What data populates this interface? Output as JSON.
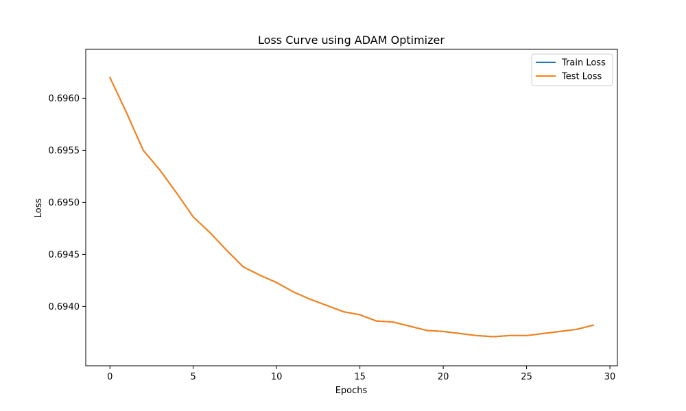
{
  "chart_data": {
    "type": "line",
    "title": "Loss Curve using ADAM Optimizer",
    "xlabel": "Epochs",
    "ylabel": "Loss",
    "xlim": [
      -1.45,
      30.45
    ],
    "ylim": [
      0.69343,
      0.69647
    ],
    "xticks": [
      0,
      5,
      10,
      15,
      20,
      25,
      30
    ],
    "xtick_labels": [
      "0",
      "5",
      "10",
      "15",
      "20",
      "25",
      "30"
    ],
    "yticks": [
      0.694,
      0.6945,
      0.695,
      0.6955,
      0.696
    ],
    "ytick_labels": [
      "0.6940",
      "0.6945",
      "0.6950",
      "0.6955",
      "0.6960"
    ],
    "grid": false,
    "legend_position": "top-right",
    "x": [
      0,
      1,
      2,
      3,
      4,
      5,
      6,
      7,
      8,
      9,
      10,
      11,
      12,
      13,
      14,
      15,
      16,
      17,
      18,
      19,
      20,
      21,
      22,
      23,
      24,
      25,
      26,
      27,
      28,
      29
    ],
    "series": [
      {
        "name": "Train Loss",
        "color": "#1f77b4",
        "values": [
          0.6962,
          0.69586,
          0.6955,
          0.69531,
          0.69509,
          0.69486,
          0.69471,
          0.69454,
          0.69438,
          0.6943,
          0.69423,
          0.69414,
          0.69407,
          0.69401,
          0.69395,
          0.69392,
          0.69386,
          0.69385,
          0.69381,
          0.69377,
          0.69376,
          0.69374,
          0.69372,
          0.69371,
          0.69372,
          0.69372,
          0.69374,
          0.69376,
          0.69378,
          0.69382
        ]
      },
      {
        "name": "Test Loss",
        "color": "#ff7f0e",
        "values": [
          0.6962,
          0.69586,
          0.6955,
          0.69531,
          0.69509,
          0.69486,
          0.69471,
          0.69454,
          0.69438,
          0.6943,
          0.69423,
          0.69414,
          0.69407,
          0.69401,
          0.69395,
          0.69392,
          0.69386,
          0.69385,
          0.69381,
          0.69377,
          0.69376,
          0.69374,
          0.69372,
          0.69371,
          0.69372,
          0.69372,
          0.69374,
          0.69376,
          0.69378,
          0.69382
        ]
      }
    ]
  }
}
